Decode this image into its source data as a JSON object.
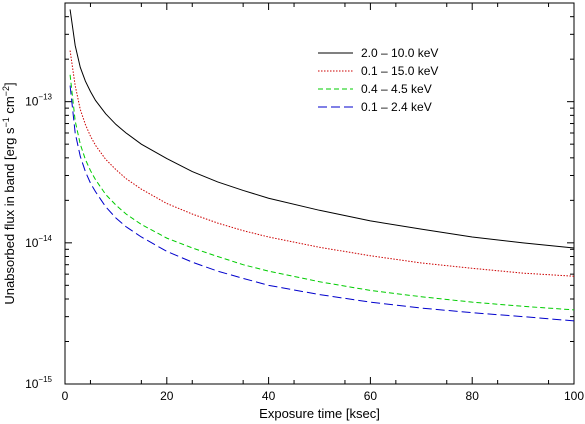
{
  "chart_data": {
    "type": "line",
    "title": "",
    "xlabel": "Exposure time [ksec]",
    "ylabel_parts": [
      "Unabsorbed flux in band [erg s",
      "−1",
      " cm",
      "−2",
      "]"
    ],
    "xlim": [
      0,
      100
    ],
    "ylim": [
      1e-15,
      5e-13
    ],
    "yscale": "log",
    "grid": false,
    "legend_placement": "top-right",
    "x_ticks": [
      {
        "value": 0,
        "label": "0"
      },
      {
        "value": 20,
        "label": "20"
      },
      {
        "value": 40,
        "label": "40"
      },
      {
        "value": 60,
        "label": "60"
      },
      {
        "value": 80,
        "label": "80"
      },
      {
        "value": 100,
        "label": "100"
      }
    ],
    "y_ticks": [
      {
        "value": 1e-15,
        "label": "10",
        "exp": "−15"
      },
      {
        "value": 1e-14,
        "label": "10",
        "exp": "−14"
      },
      {
        "value": 1e-13,
        "label": "10",
        "exp": "−13"
      }
    ],
    "x": [
      1,
      2,
      3,
      4,
      5,
      6,
      8,
      10,
      12,
      15,
      20,
      25,
      30,
      35,
      40,
      50,
      60,
      70,
      80,
      90,
      100
    ],
    "series": [
      {
        "name": "2.0 – 10.0 keV",
        "color": "#000000",
        "dash": "solid",
        "values": [
          4.5e-13,
          2.5e-13,
          1.75e-13,
          1.4e-13,
          1.18e-13,
          1.02e-13,
          8.2e-14,
          6.9e-14,
          6e-14,
          5e-14,
          3.95e-14,
          3.2e-14,
          2.7e-14,
          2.35e-14,
          2.07e-14,
          1.7e-14,
          1.43e-14,
          1.25e-14,
          1.1e-14,
          1e-14,
          9.2e-15
        ]
      },
      {
        "name": "0.1 – 15.0 keV",
        "color": "#cc0000",
        "dash": "dotted",
        "values": [
          2.3e-13,
          1.3e-13,
          8.8e-14,
          6.9e-14,
          5.7e-14,
          4.9e-14,
          3.9e-14,
          3.3e-14,
          2.85e-14,
          2.4e-14,
          1.9e-14,
          1.6e-14,
          1.38e-14,
          1.22e-14,
          1.1e-14,
          9.3e-15,
          8.1e-15,
          7.2e-15,
          6.6e-15,
          6.1e-15,
          5.8e-15
        ]
      },
      {
        "name": "0.4 – 4.5 keV",
        "color": "#00cc00",
        "dash": "dashed",
        "values": [
          1.55e-13,
          7.3e-14,
          5e-14,
          3.9e-14,
          3.25e-14,
          2.8e-14,
          2.2e-14,
          1.85e-14,
          1.6e-14,
          1.35e-14,
          1.08e-14,
          9.2e-15,
          8e-15,
          7e-15,
          6.3e-15,
          5.3e-15,
          4.6e-15,
          4.15e-15,
          3.8e-15,
          3.55e-15,
          3.35e-15
        ]
      },
      {
        "name": "0.1 – 2.4 keV",
        "color": "#0000cc",
        "dash": "longdash",
        "values": [
          1.3e-13,
          6e-14,
          4.1e-14,
          3.2e-14,
          2.65e-14,
          2.3e-14,
          1.8e-14,
          1.5e-14,
          1.3e-14,
          1.1e-14,
          8.7e-15,
          7.3e-15,
          6.3e-15,
          5.6e-15,
          5e-15,
          4.3e-15,
          3.8e-15,
          3.45e-15,
          3.2e-15,
          3e-15,
          2.8e-15
        ]
      }
    ]
  }
}
